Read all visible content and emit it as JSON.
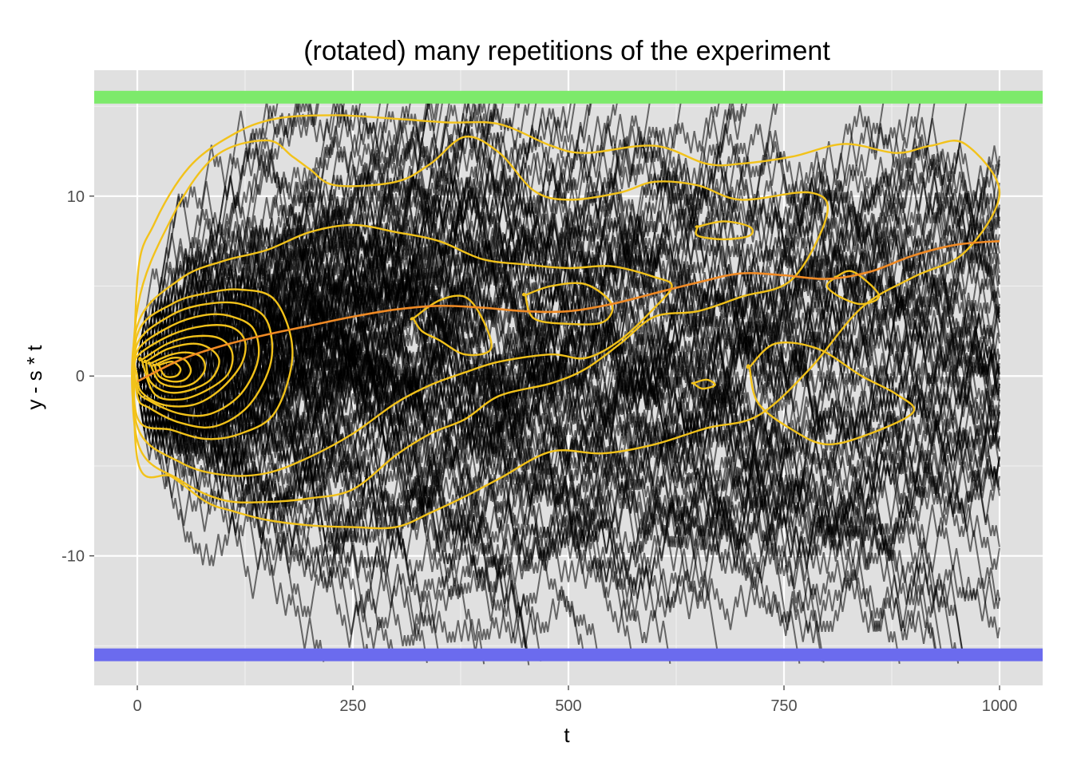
{
  "chart_data": {
    "type": "line",
    "title": "(rotated) many repetitions of the experiment",
    "xlabel": "t",
    "ylabel": "y - s * t",
    "xlim": [
      -50,
      1050
    ],
    "ylim": [
      -17.2,
      17.0
    ],
    "x_ticks": [
      0,
      250,
      500,
      750,
      1000
    ],
    "y_ticks": [
      -10,
      0,
      10
    ],
    "x_tick_labels": [
      "0",
      "250",
      "500",
      "750",
      "1000"
    ],
    "y_tick_labels": [
      "-10",
      "0",
      "10"
    ],
    "grid": true,
    "panel_background": "#e0e0e0",
    "grid_color": "#ffffff",
    "background": "#ffffff",
    "reference_bands": [
      {
        "y": 15.5,
        "color": "#7dea6b"
      },
      {
        "y": -15.5,
        "color": "#6b6bee"
      }
    ],
    "paths": {
      "count": 120,
      "t_max": 1000,
      "step_size": 0.6,
      "upper_barrier": 15.5,
      "lower_barrier": -15.5,
      "color": "#000000",
      "opacity": 0.55
    },
    "smooth": {
      "color": "#f08a24",
      "x": [
        0,
        50,
        100,
        150,
        200,
        250,
        300,
        350,
        400,
        450,
        500,
        550,
        600,
        650,
        700,
        750,
        800,
        850,
        900,
        950,
        1000
      ],
      "y": [
        -0.3,
        0.9,
        1.7,
        2.3,
        2.8,
        3.3,
        3.7,
        3.9,
        3.8,
        3.6,
        3.6,
        4.0,
        4.6,
        5.2,
        5.7,
        5.6,
        5.4,
        5.8,
        6.7,
        7.3,
        7.5
      ]
    },
    "contours": {
      "color": "#f2c21a",
      "levels": [
        {
          "x": [
            0,
            20,
            60,
            110,
            160,
            230,
            300,
            360,
            420,
            480,
            520,
            600,
            660,
            700,
            760,
            820,
            880,
            920,
            960,
            1000,
            960,
            900,
            840,
            780,
            720,
            660,
            600,
            540,
            480,
            420,
            380,
            340,
            300,
            250,
            200,
            150,
            110,
            80,
            40,
            0
          ],
          "y": [
            5.3,
            8.5,
            11.6,
            13.4,
            14.3,
            14.5,
            14.3,
            14.1,
            14.0,
            12.8,
            12.4,
            12.8,
            11.8,
            11.8,
            12.2,
            12.9,
            12.4,
            12.8,
            12.9,
            10.2,
            6.9,
            5.5,
            3.8,
            0.4,
            -2.2,
            -2.9,
            -3.8,
            -4.3,
            -4.2,
            -5.7,
            -6.7,
            -7.6,
            -8.4,
            -8.4,
            -8.3,
            -8.0,
            -7.5,
            -7.0,
            -5.6,
            -4.6
          ]
        },
        {
          "x": [
            0,
            40,
            90,
            150,
            180,
            200,
            230,
            300,
            340,
            380,
            420,
            460,
            500,
            560,
            600,
            650,
            700,
            780,
            800,
            760,
            700,
            650,
            600,
            560,
            520,
            480,
            420,
            380,
            340,
            300,
            250,
            200,
            150,
            100,
            50,
            0
          ],
          "y": [
            3.7,
            8.8,
            12.2,
            13.1,
            12.2,
            11.5,
            10.6,
            10.8,
            11.8,
            13.3,
            12.4,
            10.3,
            9.8,
            10.2,
            10.8,
            10.6,
            9.8,
            10.2,
            9.0,
            5.4,
            4.4,
            3.6,
            3.3,
            1.8,
            0.4,
            -0.4,
            -1.1,
            -2.4,
            -3.2,
            -4.4,
            -6.3,
            -6.8,
            -7.0,
            -6.9,
            -5.8,
            -3.6
          ]
        },
        {
          "x": [
            0,
            50,
            100,
            150,
            200,
            250,
            300,
            350,
            400,
            450,
            500,
            550,
            600,
            620,
            600,
            560,
            520,
            480,
            420,
            380,
            340,
            300,
            250,
            200,
            150,
            100,
            50,
            0
          ],
          "y": [
            2.8,
            5.4,
            6.4,
            7.0,
            8.0,
            8.4,
            8.0,
            7.5,
            6.5,
            6.2,
            6.0,
            6.1,
            5.5,
            5.0,
            3.8,
            2.0,
            1.0,
            1.2,
            0.8,
            0.2,
            -0.5,
            -1.5,
            -3.2,
            -4.5,
            -5.4,
            -5.5,
            -4.8,
            -2.8
          ]
        },
        {
          "x": [
            0,
            40,
            80,
            120,
            160,
            180,
            160,
            120,
            80,
            40,
            0
          ],
          "y": [
            2.3,
            4.0,
            4.6,
            4.8,
            4.2,
            1.3,
            -2.0,
            -3.2,
            -3.5,
            -3.0,
            -2.3
          ]
        },
        {
          "x": [
            0,
            40,
            80,
            120,
            150,
            155,
            130,
            90,
            50,
            15,
            0
          ],
          "y": [
            1.8,
            3.4,
            4.0,
            4.0,
            3.1,
            0.8,
            -1.6,
            -2.8,
            -2.6,
            -1.8,
            -1.1
          ]
        },
        {
          "x": [
            0,
            40,
            80,
            110,
            135,
            140,
            120,
            85,
            50,
            15,
            0
          ],
          "y": [
            1.4,
            2.8,
            3.4,
            3.3,
            2.6,
            0.9,
            -1.0,
            -2.1,
            -2.1,
            -1.4,
            -0.7
          ]
        },
        {
          "x": [
            0,
            40,
            80,
            110,
            125,
            120,
            95,
            65,
            30,
            5,
            0
          ],
          "y": [
            1.1,
            2.3,
            2.8,
            2.7,
            1.9,
            0.6,
            -0.8,
            -1.6,
            -1.6,
            -0.9,
            0.0
          ]
        },
        {
          "x": [
            5,
            35,
            65,
            95,
            110,
            105,
            80,
            50,
            20,
            5
          ],
          "y": [
            0.9,
            1.8,
            2.2,
            2.1,
            1.3,
            0.1,
            -0.8,
            -1.3,
            -1.0,
            0.9
          ]
        },
        {
          "x": [
            10,
            35,
            65,
            85,
            95,
            85,
            60,
            35,
            15,
            10
          ],
          "y": [
            0.8,
            1.5,
            1.8,
            1.5,
            0.8,
            -0.2,
            -0.8,
            -0.9,
            -0.3,
            0.8
          ]
        },
        {
          "x": [
            15,
            40,
            60,
            75,
            78,
            65,
            45,
            25,
            15
          ],
          "y": [
            0.7,
            1.2,
            1.3,
            1.0,
            0.3,
            -0.4,
            -0.6,
            -0.3,
            0.7
          ]
        },
        {
          "x": [
            20,
            40,
            55,
            62,
            55,
            40,
            25,
            20
          ],
          "y": [
            0.6,
            1.0,
            0.9,
            0.3,
            -0.2,
            -0.3,
            0.0,
            0.6
          ]
        },
        {
          "x": [
            25,
            40,
            50,
            45,
            32,
            25
          ],
          "y": [
            0.6,
            0.8,
            0.4,
            0.0,
            0.0,
            0.6
          ]
        },
        {
          "x": [
            320,
            350,
            380,
            400,
            410,
            380,
            350,
            330,
            320
          ],
          "y": [
            3.2,
            4.2,
            4.4,
            3.2,
            1.5,
            1.2,
            2.0,
            2.5,
            3.2
          ]
        },
        {
          "x": [
            450,
            480,
            520,
            550,
            540,
            500,
            460,
            450
          ],
          "y": [
            4.5,
            5.0,
            5.1,
            4.0,
            3.0,
            2.9,
            3.2,
            4.5
          ]
        },
        {
          "x": [
            650,
            680,
            710,
            710,
            680,
            650,
            650
          ],
          "y": [
            8.3,
            8.6,
            8.3,
            7.8,
            7.6,
            7.8,
            8.3
          ]
        },
        {
          "x": [
            810,
            830,
            860,
            840,
            815,
            800,
            810
          ],
          "y": [
            5.5,
            5.8,
            4.5,
            4.0,
            4.4,
            5.0,
            5.5
          ]
        },
        {
          "x": [
            645,
            660,
            670,
            655,
            645
          ],
          "y": [
            -0.4,
            -0.2,
            -0.5,
            -0.7,
            -0.4
          ]
        },
        {
          "x": [
            710,
            740,
            790,
            840,
            880,
            900,
            850,
            800,
            760,
            720,
            710
          ],
          "y": [
            0.5,
            1.8,
            1.5,
            0.0,
            -1.0,
            -2.0,
            -3.2,
            -3.8,
            -3.0,
            -1.5,
            0.5
          ]
        }
      ]
    }
  }
}
